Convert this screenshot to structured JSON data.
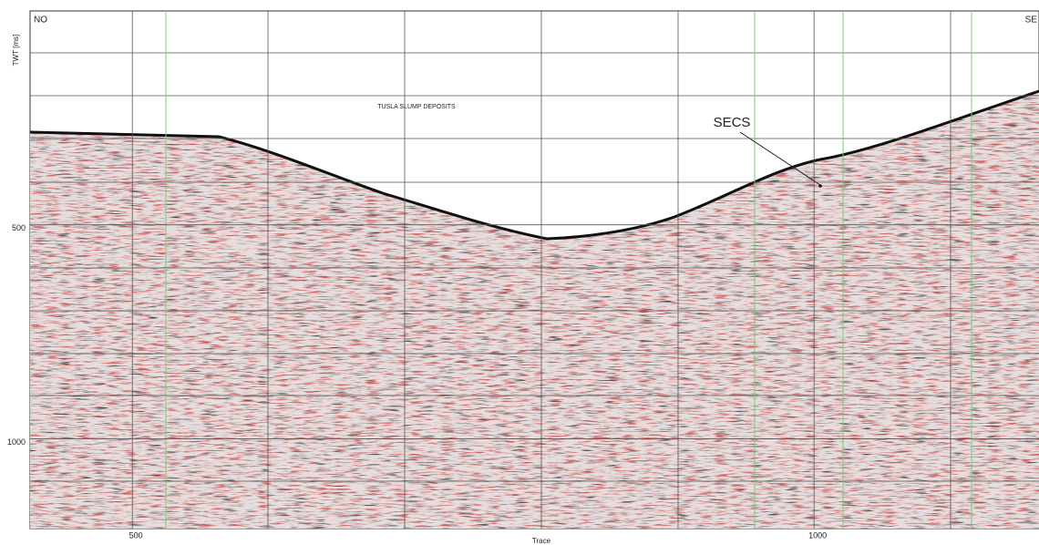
{
  "chart_data": {
    "type": "seismic",
    "xlabel": "Trace",
    "ylabel": "TWT [ms]",
    "xlim": [
      425,
      1165
    ],
    "xticks": [
      500,
      1000
    ],
    "ylim": [
      0,
      1210
    ],
    "yticks": [
      500,
      1000
    ],
    "yinverted": true,
    "annotations": {
      "left": "NO",
      "right": "SE",
      "deposits": "TUSLA SLUMP DEPOSITS",
      "surface": "SECS"
    }
  }
}
